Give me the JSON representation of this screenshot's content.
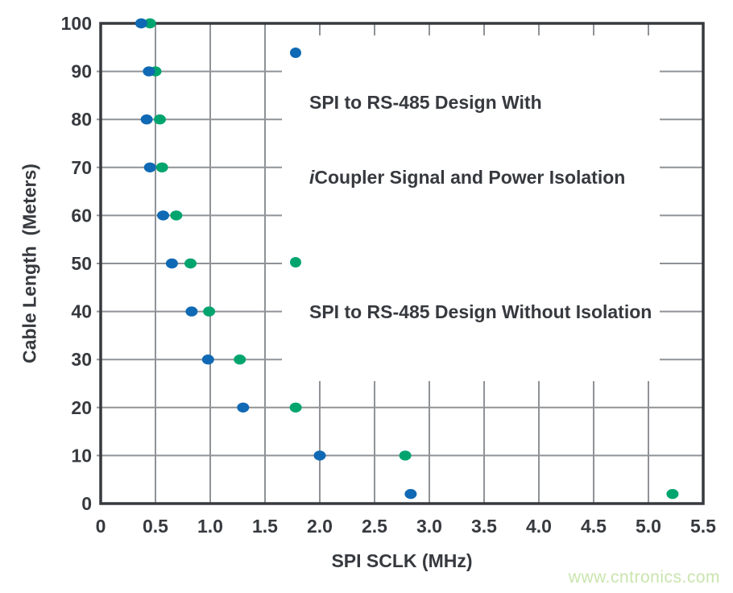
{
  "chart_data": {
    "type": "scatter",
    "title": "",
    "xlabel": "SPI SCLK (MHz)",
    "ylabel": "Cable Length  (Meters)",
    "xlim": [
      0,
      5.5
    ],
    "ylim": [
      0,
      100
    ],
    "x_ticks": [
      0,
      0.5,
      1.0,
      1.5,
      2.0,
      2.5,
      3.0,
      3.5,
      4.0,
      4.5,
      5.0,
      5.5
    ],
    "x_tick_labels": [
      "0",
      "0.5",
      "1.0",
      "1.5",
      "2.0",
      "2.5",
      "3.0",
      "3.5",
      "4.0",
      "4.5",
      "5.0",
      "5.5"
    ],
    "y_ticks": [
      0,
      10,
      20,
      30,
      40,
      50,
      60,
      70,
      80,
      90,
      100
    ],
    "y_tick_labels": [
      "0",
      "10",
      "20",
      "30",
      "40",
      "50",
      "60",
      "70",
      "80",
      "90",
      "100"
    ],
    "grid": true,
    "legend_position": "top-right-inside",
    "series": [
      {
        "name": "SPI to RS-485 Design With iCoupler Signal and Power Isolation",
        "color": "#1069b4",
        "points": [
          {
            "x": 0.37,
            "y": 100
          },
          {
            "x": 0.44,
            "y": 90
          },
          {
            "x": 0.42,
            "y": 80
          },
          {
            "x": 0.45,
            "y": 70
          },
          {
            "x": 0.57,
            "y": 60
          },
          {
            "x": 0.65,
            "y": 50
          },
          {
            "x": 0.83,
            "y": 40
          },
          {
            "x": 0.98,
            "y": 30
          },
          {
            "x": 1.3,
            "y": 20
          },
          {
            "x": 2.0,
            "y": 10
          },
          {
            "x": 2.83,
            "y": 2
          }
        ]
      },
      {
        "name": "SPI to RS-485 Design Without Isolation",
        "color": "#00a46e",
        "points": [
          {
            "x": 0.45,
            "y": 100
          },
          {
            "x": 0.5,
            "y": 90
          },
          {
            "x": 0.54,
            "y": 80
          },
          {
            "x": 0.56,
            "y": 70
          },
          {
            "x": 0.69,
            "y": 60
          },
          {
            "x": 0.82,
            "y": 50
          },
          {
            "x": 0.99,
            "y": 40
          },
          {
            "x": 1.27,
            "y": 30
          },
          {
            "x": 1.78,
            "y": 20
          },
          {
            "x": 2.78,
            "y": 10
          },
          {
            "x": 5.22,
            "y": 2
          }
        ]
      }
    ],
    "colors": {
      "grid": "#8f9296",
      "frame": "#36393e",
      "tick_text": "#36393e"
    }
  },
  "legend": {
    "item1_line1": "SPI to RS-485 Design With",
    "item1_line2_italic": "i",
    "item1_line2_rest": "Coupler Signal and Power Isolation",
    "item2_label": "SPI to RS-485 Design Without Isolation"
  },
  "watermark": "www.cntronics.com"
}
